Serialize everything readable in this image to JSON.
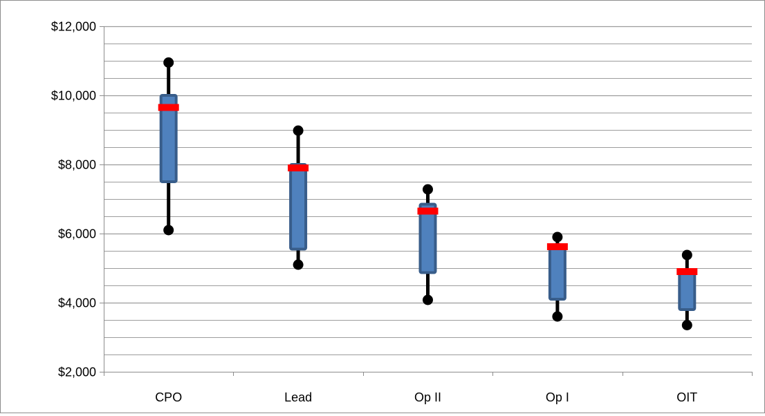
{
  "chart_data": {
    "type": "box",
    "title": "",
    "xlabel": "",
    "ylabel": "",
    "categories": [
      "CPO",
      "Lead",
      "Op II",
      "Op I",
      "OIT"
    ],
    "series": [
      {
        "category": "CPO",
        "min": 6100,
        "q1": 7500,
        "median": 9650,
        "q3": 10000,
        "max": 10950
      },
      {
        "category": "Lead",
        "min": 5100,
        "q1": 5550,
        "median": 7900,
        "q3": 8000,
        "max": 8980
      },
      {
        "category": "Op II",
        "min": 4080,
        "q1": 4870,
        "median": 6650,
        "q3": 6850,
        "max": 7280
      },
      {
        "category": "Op I",
        "min": 3600,
        "q1": 4100,
        "median": 5620,
        "q3": 5620,
        "max": 5900
      },
      {
        "category": "OIT",
        "min": 3350,
        "q1": 3800,
        "median": 4900,
        "q3": 4900,
        "max": 5380
      }
    ],
    "ylim": [
      2000,
      12000
    ],
    "y_major_step": 2000,
    "y_minor_step": 500,
    "y_tick_prefix": "$",
    "grid": true,
    "legend": "none",
    "colors": {
      "box_fill": "#4f81bd",
      "box_edge": "#385d8a",
      "median": "#ff0000",
      "whisker": "#000000",
      "grid": "#9c9c9c",
      "axis": "#8c8c8c"
    }
  }
}
